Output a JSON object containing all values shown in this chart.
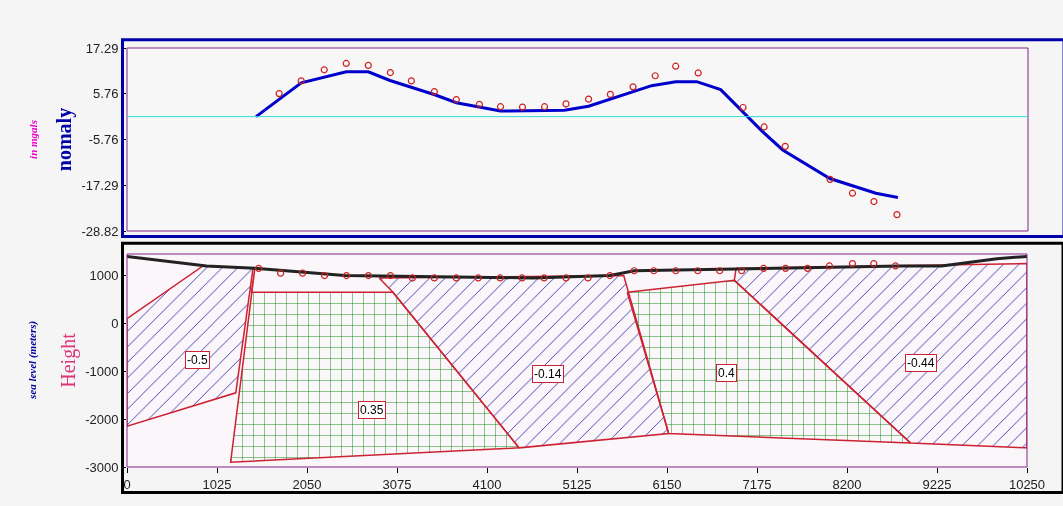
{
  "chart_data": [
    {
      "type": "line",
      "ylabel": "nomaly",
      "annotations": [
        "in mgals"
      ],
      "xlim": [
        0,
        10250
      ],
      "ylim": [
        -28.82,
        17.29
      ],
      "yticks": [
        17.29,
        5.76,
        -5.76,
        -17.29,
        -28.82
      ],
      "tick_labels": "y",
      "grid": false,
      "legend": false,
      "ref_lines": [
        {
          "axis": "y",
          "value": 0,
          "color": "#33dddd"
        }
      ],
      "series": [
        {
          "color": "#0000cc",
          "x": [
            1468,
            1982,
            2494,
            2745,
            2992,
            3502,
            3747,
            4249,
            4977,
            5251,
            5968,
            6242,
            6481,
            6754,
            7221,
            7460,
            7996,
            8520,
            8770
          ],
          "values": [
            0,
            8.5,
            11.3,
            11.3,
            9.1,
            5.5,
            3.5,
            1.4,
            1.6,
            2.6,
            7.8,
            8.8,
            8.8,
            6.8,
            -3.6,
            -8.4,
            -15.6,
            -19.3,
            -20.4
          ]
        },
        {
          "type": "scatter",
          "marker": "circle",
          "color": "#cc2222",
          "x": [
            1731,
            1982,
            2244,
            2494,
            2745,
            2996,
            3235,
            3497,
            3747,
            4009,
            4249,
            4499,
            4750,
            4994,
            5251,
            5499,
            5757,
            6009,
            6242,
            6498,
            7008,
            7248,
            7488,
            7998,
            8253,
            8497,
            8759
          ],
          "values": [
            5.8,
            9,
            11.8,
            13.4,
            12.9,
            11.1,
            9,
            6.3,
            4.3,
            3.1,
            2.5,
            2.4,
            2.5,
            3.2,
            4.4,
            5.6,
            7.5,
            10.3,
            12.7,
            11,
            2.3,
            -2.6,
            -7.5,
            -15.8,
            -19.3,
            -21.4,
            -24.7
          ]
        }
      ]
    },
    {
      "type": "area",
      "ylabel": "Height",
      "annotations": [
        "sea level (meters)",
        {
          "text": "-0.5",
          "x": 806,
          "y": -765
        },
        {
          "text": "0.35",
          "x": 2793,
          "y": -1802
        },
        {
          "text": "-0.14",
          "x": 4792,
          "y": -1057
        },
        {
          "text": "0.4",
          "x": 6830,
          "y": -1035
        },
        {
          "text": "-0.44",
          "x": 9041,
          "y": -823
        }
      ],
      "xlim": [
        0,
        10250
      ],
      "xticks": [
        0,
        1025,
        2050,
        3075,
        4100,
        5125,
        6150,
        7175,
        8200,
        9225,
        10250
      ],
      "ylim": [
        -3000,
        1450
      ],
      "yticks": [
        1000,
        0,
        -1000,
        -2000,
        -3000
      ],
      "grid": false,
      "legend": false,
      "series": [
        {
          "color": "#3333aa",
          "x": [
            0,
            865,
            1435,
            1239,
            0,
            0
          ],
          "values": [
            100,
            1200,
            1150,
            -1450,
            -2150,
            100
          ]
        },
        {
          "color": "#008000",
          "x": [
            1456,
            1416,
            3029,
            4466,
            1180,
            1456
          ],
          "values": [
            1150,
            650,
            650,
            -2600,
            -2900,
            1150
          ]
        },
        {
          "color": "#3333aa",
          "x": [
            2872,
            3029,
            4466,
            6169,
            5657,
            2872
          ],
          "values": [
            950,
            650,
            -2600,
            -2300,
            1000,
            950
          ]
        },
        {
          "color": "#008000",
          "x": [
            5697,
            6917,
            8924,
            6169,
            5697
          ],
          "values": [
            650,
            900,
            -2500,
            -2300,
            650
          ]
        },
        {
          "color": "#3333aa",
          "x": [
            6936,
            10250,
            10250,
            8924,
            6917,
            6936
          ],
          "values": [
            1150,
            1250,
            -2600,
            -2500,
            900,
            1150
          ]
        },
        {
          "type": "line",
          "color": "#222222",
          "x": [
            0,
            905,
            1456,
            2478,
            4623,
            5501,
            5776,
            8805,
            9277,
            9907,
            10250
          ],
          "values": [
            1400,
            1200,
            1150,
            1000,
            950,
            1000,
            1100,
            1200,
            1200,
            1350,
            1400
          ]
        },
        {
          "type": "scatter",
          "marker": "circle",
          "color": "#cc2222",
          "x": [
            1500,
            1750,
            2000,
            2250,
            2500,
            2750,
            3000,
            3250,
            3500,
            3750,
            4000,
            4250,
            4500,
            4750,
            5000,
            5250,
            5500,
            5776,
            6000,
            6250,
            6500,
            6750,
            7000,
            7250,
            7500,
            7750,
            8000,
            8262,
            8505,
            8752
          ],
          "values": [
            1150,
            1050,
            1050,
            1000,
            1000,
            1000,
            1000,
            950,
            950,
            950,
            950,
            950,
            950,
            950,
            950,
            950,
            1000,
            1100,
            1100,
            1100,
            1100,
            1100,
            1100,
            1150,
            1150,
            1150,
            1200,
            1250,
            1250,
            1200
          ]
        }
      ]
    }
  ]
}
